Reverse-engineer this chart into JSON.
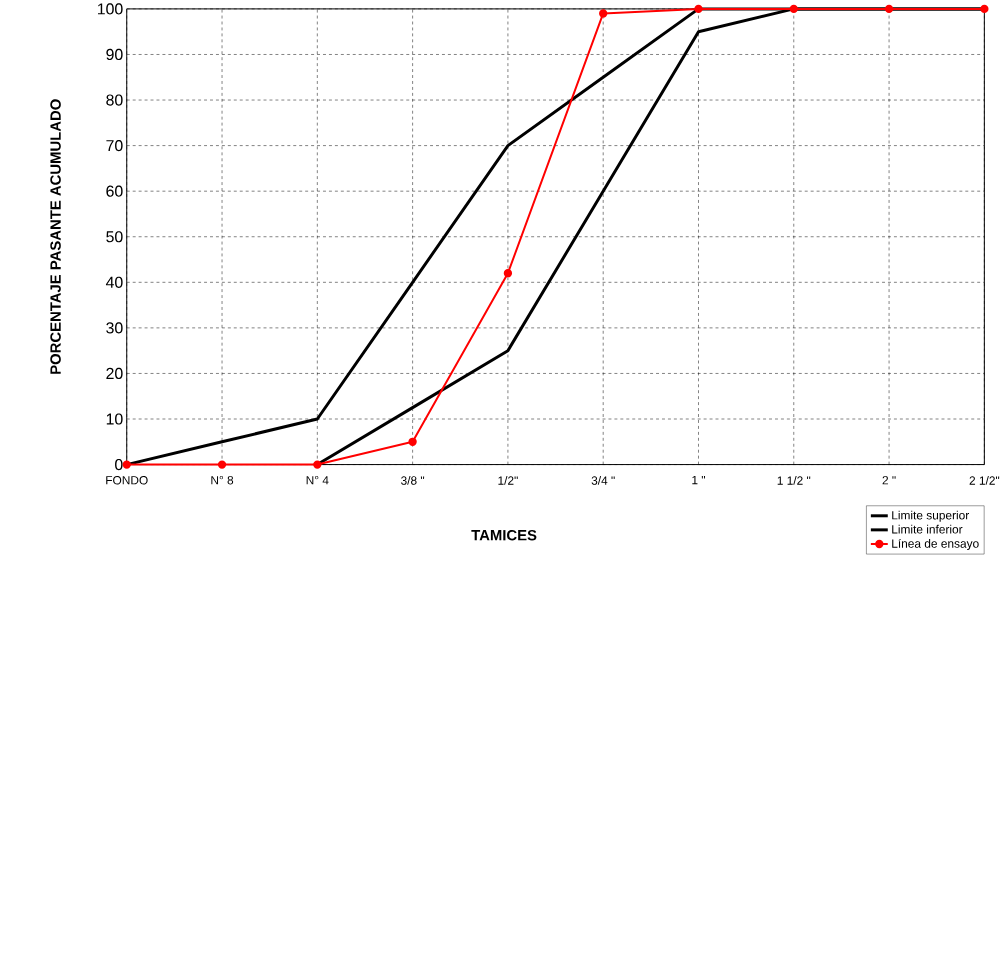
{
  "chart_data": {
    "type": "line",
    "xlabel": "TAMICES",
    "ylabel": "PORCENTAJE PASANTE ACUMULADO",
    "categories": [
      "FONDO",
      "N° 8",
      "N° 4",
      "3/8 \"",
      "1/2\"",
      "3/4 \"",
      "1 \"",
      "1 1/2 \"",
      "2 \"",
      "2 1/2\""
    ],
    "series": [
      {
        "name": "Limite superior",
        "color": "#000000",
        "marker": "none",
        "values": [
          0,
          5,
          10,
          40,
          70,
          85,
          100,
          100,
          100,
          100
        ]
      },
      {
        "name": "Limite inferior",
        "color": "#000000",
        "marker": "none",
        "values": [
          null,
          null,
          0,
          12.5,
          25,
          60,
          95,
          100,
          100,
          100
        ]
      },
      {
        "name": "Línea de ensayo",
        "color": "#ff0000",
        "marker": "circle",
        "values": [
          0,
          0,
          0,
          5,
          42,
          99,
          100,
          100,
          100,
          100
        ]
      }
    ],
    "ylim": [
      0,
      100
    ],
    "yticks": [
      0,
      10,
      20,
      30,
      40,
      50,
      60,
      70,
      80,
      90,
      100
    ],
    "grid": true,
    "legend": "bottom right",
    "line_style": "solid"
  }
}
